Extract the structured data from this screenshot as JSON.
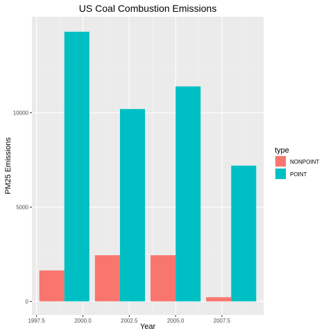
{
  "chart_data": {
    "type": "bar",
    "title": "US Coal Combustion Emissions",
    "xlabel": "Year",
    "ylabel": "PM25 Emissions",
    "categories": [
      1999,
      2002,
      2005,
      2008
    ],
    "series": [
      {
        "name": "NONPOINT",
        "values": [
          1640,
          2450,
          2450,
          220
        ],
        "color": "#F8766D"
      },
      {
        "name": "POINT",
        "values": [
          14300,
          10200,
          11400,
          7200
        ],
        "color": "#00BFC4"
      }
    ],
    "xlim": [
      1997.25,
      2009.75
    ],
    "ylim": [
      -720,
      15100
    ],
    "x_ticks": [
      "1997.5",
      "2000.0",
      "2002.5",
      "2005.0",
      "2007.5"
    ],
    "x_tick_values": [
      1997.5,
      2000,
      2002.5,
      2005,
      2007.5
    ],
    "y_ticks": [
      "0",
      "5000",
      "10000"
    ],
    "y_tick_values": [
      0,
      5000,
      10000
    ],
    "grid": true,
    "legend_title": "type",
    "legend_position": "right"
  }
}
